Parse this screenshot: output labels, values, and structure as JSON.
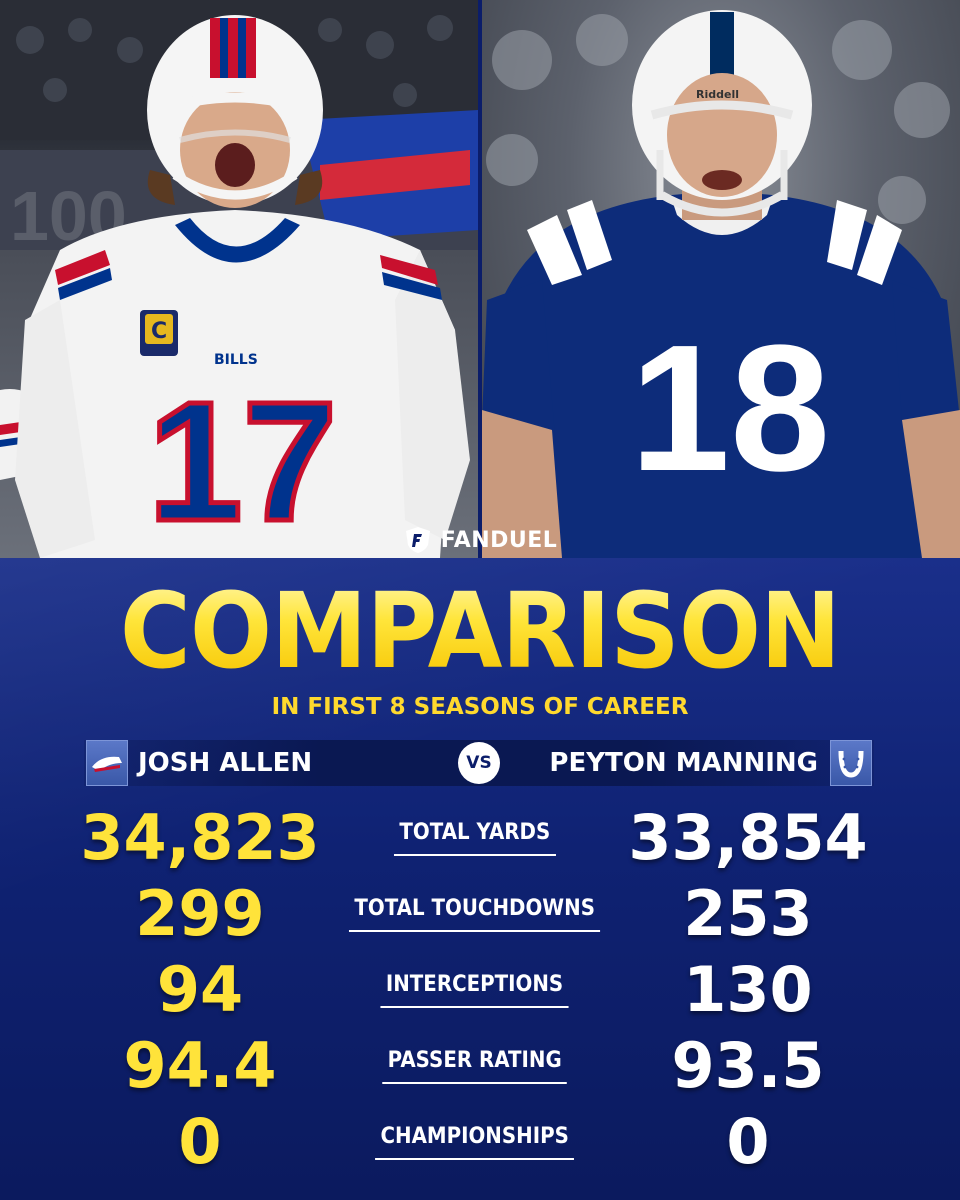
{
  "brand": {
    "name": "FANDUEL",
    "logo_icon": "fanduel-shield-icon"
  },
  "title": "COMPARISON",
  "subtitle": "IN FIRST 8 SEASONS OF CAREER",
  "matchup": {
    "left_player": "JOSH ALLEN",
    "left_team_icon": "bills-logo-icon",
    "vs": "VS",
    "right_player": "PEYTON MANNING",
    "right_team_icon": "colts-horseshoe-icon",
    "left_jersey_number": "17",
    "right_jersey_number": "18"
  },
  "stats": [
    {
      "left": "34,823",
      "label": "TOTAL YARDS",
      "right": "33,854"
    },
    {
      "left": "299",
      "label": "TOTAL TOUCHDOWNS",
      "right": "253"
    },
    {
      "left": "94",
      "label": "INTERCEPTIONS",
      "right": "130"
    },
    {
      "left": "94.4",
      "label": "PASSER RATING",
      "right": "93.5"
    },
    {
      "left": "0",
      "label": "CHAMPIONSHIPS",
      "right": "0"
    }
  ],
  "colors": {
    "panel_blue": "#0f2273",
    "title_yellow": "#ffe23b",
    "left_value_yellow": "#ffe33a",
    "right_value_white": "#ffffff",
    "bills_red": "#c8102e",
    "bills_blue": "#00338d",
    "colts_blue": "#002c5f"
  }
}
